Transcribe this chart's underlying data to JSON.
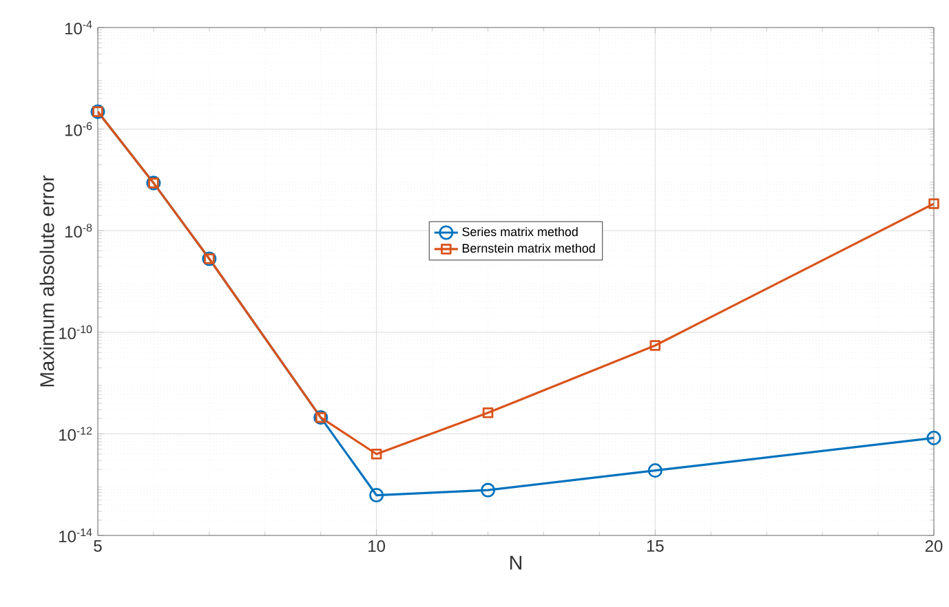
{
  "chart_data": {
    "type": "line",
    "xlabel": "N",
    "ylabel": "Maximum absolute error",
    "log": "y",
    "grid": true,
    "legend": "center",
    "line_style": "solid",
    "xlim": [
      5,
      20
    ],
    "xticks": [
      5,
      10,
      15,
      20
    ],
    "ylim": [
      1e-14,
      0.0001
    ],
    "yticks": [
      {
        "value": 1e-14,
        "label": "10$^{-14}$"
      },
      {
        "value": 1e-12,
        "label": "10$^{-12}$"
      },
      {
        "value": 1e-10,
        "label": "10$^{-10}$"
      },
      {
        "value": 1e-08,
        "label": "10$^{-8}$"
      },
      {
        "value": 1e-06,
        "label": "10$^{-6}$"
      },
      {
        "value": 0.0001,
        "label": "10$^{-4}$"
      }
    ],
    "series": [
      {
        "name": "Series matrix method",
        "color": "#0072bd",
        "marker": "circle",
        "x": [
          5,
          6,
          7,
          9,
          10,
          12,
          15,
          20
        ],
        "values": [
          2.2e-06,
          8.7e-08,
          2.8e-09,
          2.1e-12,
          6.2e-14,
          7.8e-14,
          1.9e-13,
          8.3e-13
        ]
      },
      {
        "name": "Bernstein matrix method",
        "color": "#d95319",
        "marker": "square",
        "x": [
          5,
          6,
          7,
          9,
          10,
          12,
          15,
          20
        ],
        "values": [
          2.2e-06,
          8.7e-08,
          2.8e-09,
          2.1e-12,
          4e-13,
          2.6e-12,
          5.5e-11,
          3.4e-08
        ]
      }
    ]
  }
}
